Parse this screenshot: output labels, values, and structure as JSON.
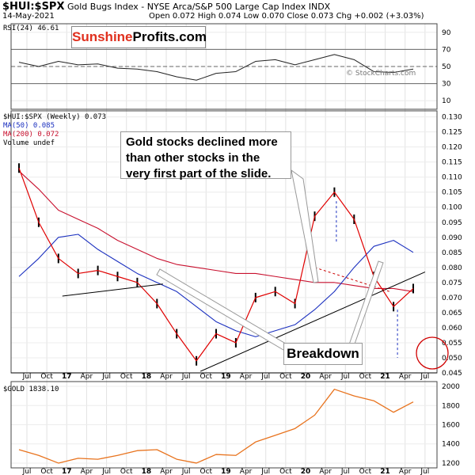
{
  "header": {
    "symbol": "$HUI:$SPX",
    "title": "Gold Bugs Index - NYSE Arca/S&P 500 Large Cap Index INDX",
    "date": "14-May-2021",
    "ohlc": "Open 0.072  High 0.074  Low 0.070  Close 0.073  Chg +0.002 (+3.03%)",
    "ohlc_up_color": "#008000"
  },
  "watermark": {
    "part1": "Sunshine",
    "part2": "Profits.com"
  },
  "copyright": "© StockCharts.com",
  "legend": {
    "rsi": "RSI(24) 46.61",
    "main": "$HUI:$SPX (Weekly) 0.073",
    "ma50": "MA(50) 0.085",
    "ma200": "MA(200) 0.072",
    "volume": "Volume undef",
    "gold": "$GOLD 1838.10"
  },
  "annotations": {
    "note": "Gold stocks declined more than other stocks in the very first part of the slide.",
    "breakdown": "Breakdown"
  },
  "colors": {
    "price": "#e00000",
    "ma50": "#1a2fbf",
    "ma200": "#c8102e",
    "gold": "#e8731e",
    "trend": "#000000",
    "circle": "#d00000"
  },
  "chart_data": [
    {
      "type": "line",
      "title": "RSI(24)",
      "yticks": [
        10,
        30,
        50,
        70,
        90
      ],
      "ylim": [
        0,
        100
      ],
      "reference_lines": [
        30,
        50,
        70
      ],
      "x": [
        "Jul 2016",
        "Oct 2016",
        "Jan 2017",
        "Apr 2017",
        "Jul 2017",
        "Oct 2017",
        "Jan 2018",
        "Apr 2018",
        "Jul 2018",
        "Oct 2018",
        "Jan 2019",
        "Apr 2019",
        "Jul 2019",
        "Oct 2019",
        "Jan 2020",
        "Apr 2020",
        "Jul 2020",
        "Oct 2020",
        "Jan 2021",
        "Apr 2021",
        "May 2021"
      ],
      "series": [
        {
          "name": "RSI(24)",
          "values": [
            55,
            50,
            56,
            52,
            53,
            48,
            47,
            44,
            38,
            34,
            42,
            44,
            56,
            58,
            52,
            58,
            64,
            58,
            44,
            43,
            47
          ]
        }
      ]
    },
    {
      "type": "line",
      "title": "$HUI:$SPX (Weekly)",
      "yticks": [
        0.045,
        0.05,
        0.055,
        0.06,
        0.065,
        0.07,
        0.075,
        0.08,
        0.085,
        0.09,
        0.095,
        0.1,
        0.105,
        0.11,
        0.115,
        0.12,
        0.125,
        0.13
      ],
      "ylim": [
        0.045,
        0.132
      ],
      "x_tick_labels": [
        "Jul",
        "Oct",
        "17",
        "Apr",
        "Jul",
        "Oct",
        "18",
        "Apr",
        "Jul",
        "Oct",
        "19",
        "Apr",
        "Jul",
        "Oct",
        "20",
        "Apr",
        "Jul",
        "Oct",
        "21",
        "Apr",
        "Jul"
      ],
      "x": [
        "Jul 2016",
        "Oct 2016",
        "Jan 2017",
        "Apr 2017",
        "Jul 2017",
        "Oct 2017",
        "Jan 2018",
        "Apr 2018",
        "Jul 2018",
        "Oct 2018",
        "Jan 2019",
        "Apr 2019",
        "Jul 2019",
        "Oct 2019",
        "Jan 2020",
        "Apr 2020",
        "Jul 2020",
        "Oct 2020",
        "Jan 2021",
        "Apr 2021",
        "May 2021"
      ],
      "series": [
        {
          "name": "$HUI:$SPX",
          "values": [
            0.113,
            0.095,
            0.083,
            0.078,
            0.079,
            0.077,
            0.075,
            0.068,
            0.058,
            0.049,
            0.058,
            0.055,
            0.07,
            0.072,
            0.068,
            0.097,
            0.105,
            0.096,
            0.077,
            0.067,
            0.073
          ]
        },
        {
          "name": "MA(50)",
          "values": [
            0.077,
            0.083,
            0.09,
            0.091,
            0.086,
            0.082,
            0.078,
            0.075,
            0.072,
            0.067,
            0.062,
            0.059,
            0.057,
            0.059,
            0.061,
            0.066,
            0.072,
            0.08,
            0.087,
            0.089,
            0.085
          ]
        },
        {
          "name": "MA(200)",
          "values": [
            0.112,
            0.106,
            0.099,
            0.096,
            0.093,
            0.089,
            0.086,
            0.083,
            0.081,
            0.08,
            0.079,
            0.078,
            0.078,
            0.077,
            0.076,
            0.075,
            0.075,
            0.074,
            0.073,
            0.073,
            0.072
          ]
        }
      ]
    },
    {
      "type": "line",
      "title": "$GOLD",
      "yticks": [
        1200,
        1400,
        1600,
        1800,
        2000
      ],
      "ylim": [
        1150,
        2050
      ],
      "x": [
        "Jul 2016",
        "Oct 2016",
        "Jan 2017",
        "Apr 2017",
        "Jul 2017",
        "Oct 2017",
        "Jan 2018",
        "Apr 2018",
        "Jul 2018",
        "Oct 2018",
        "Jan 2019",
        "Apr 2019",
        "Jul 2019",
        "Oct 2019",
        "Jan 2020",
        "Apr 2020",
        "Jul 2020",
        "Oct 2020",
        "Jan 2021",
        "Apr 2021",
        "May 2021"
      ],
      "series": [
        {
          "name": "$GOLD",
          "values": [
            1340,
            1280,
            1200,
            1250,
            1240,
            1280,
            1330,
            1340,
            1240,
            1200,
            1290,
            1280,
            1420,
            1490,
            1560,
            1700,
            1970,
            1900,
            1850,
            1730,
            1838
          ]
        }
      ]
    }
  ]
}
